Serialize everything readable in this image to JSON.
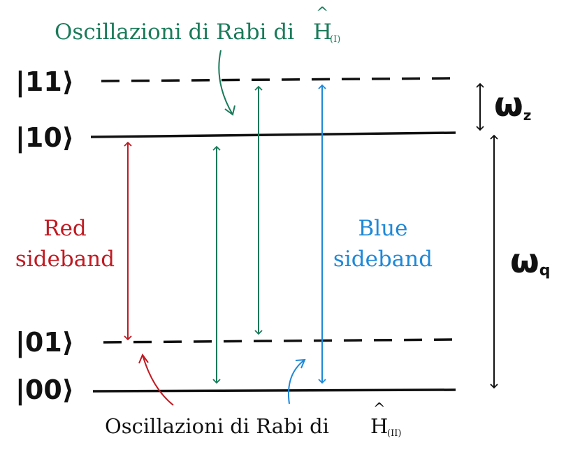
{
  "diagram": {
    "states": {
      "s11": "|11⟩",
      "s10": "|10⟩",
      "s01": "|01⟩",
      "s00": "|00⟩"
    },
    "top_annotation": {
      "text": "Oscillazioni di Rabi di",
      "hamiltonian": "H",
      "hat": "^",
      "subscript": "(I)"
    },
    "bottom_annotation": {
      "text": "Oscillazioni di Rabi di",
      "hamiltonian": "H",
      "hat": "^",
      "subscript": "(II)"
    },
    "red_sideband": {
      "line1": "Red",
      "line2": "sideband"
    },
    "blue_sideband": {
      "line1": "Blue",
      "line2": "sideband"
    },
    "omega_z": {
      "symbol": "ω",
      "subscript": "z"
    },
    "omega_q": {
      "symbol": "ω",
      "subscript": "q"
    },
    "colors": {
      "black": "#111111",
      "red": "#c01a22",
      "green": "#1a7a5a",
      "blue": "#1e88d8"
    }
  }
}
